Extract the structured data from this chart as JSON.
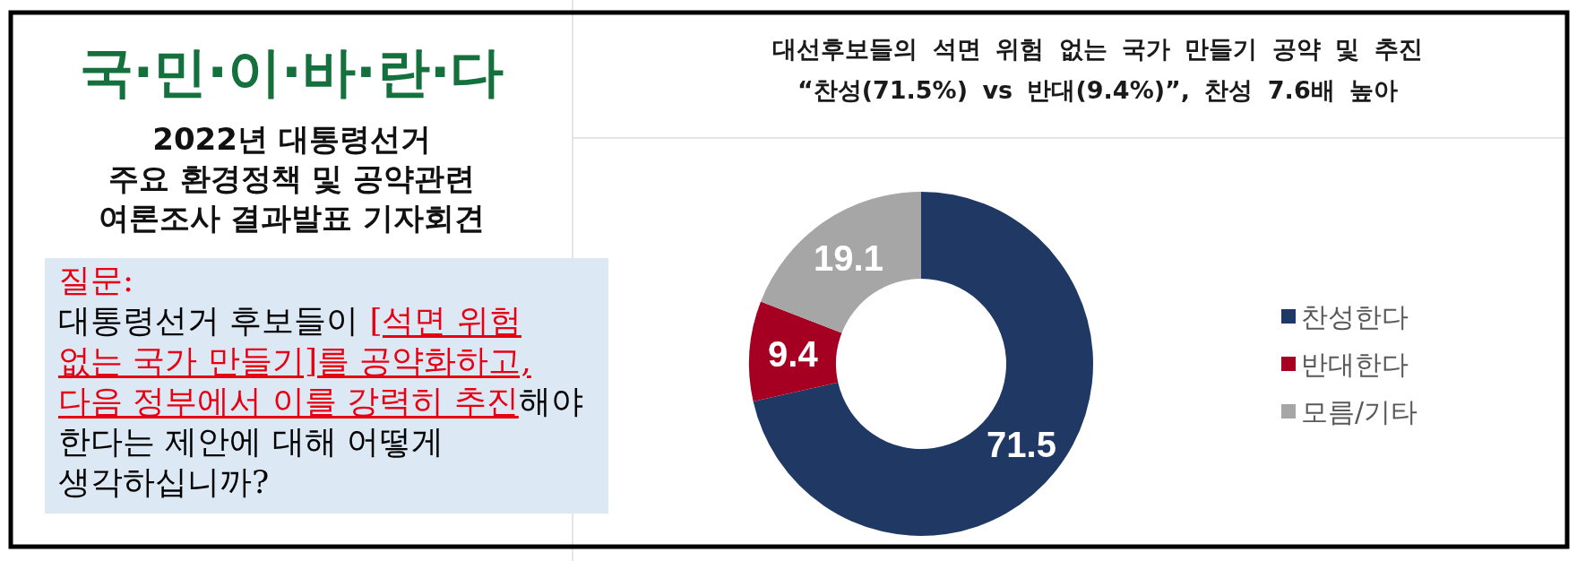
{
  "chart_data": [
    {
      "type": "other",
      "title": "국·민·이·바·란·다",
      "subtitle": "2022년 대통령선거\n주요 환경정책 및 공약관련\n여론조사 결과발표 기자회견",
      "annotations": [
        "질문:",
        "대통령선거 후보들이",
        "[석면 위험",
        "없는 국가 만들기]를 공약화하고,",
        "다음 정부에서 이를 강력히 추진",
        "해야",
        "한다는 제안에 대해 어떻게",
        "생각하십니까?"
      ]
    },
    {
      "type": "donut",
      "title": "대선후보들의 석면 위험 없는 국가 만들기 공약 및 추진",
      "subtitle": "“찬성(71.5%) vs 반대(9.4%)”, 찬성 7.6배 높아",
      "categories": [
        "찬성한다",
        "반대한다",
        "모름/기타"
      ],
      "values": [
        71.5,
        9.4,
        19.1
      ],
      "colors": [
        "#203864",
        "#a50021",
        "#a6a6a6"
      ],
      "data_labels": true,
      "legend": "right"
    }
  ]
}
